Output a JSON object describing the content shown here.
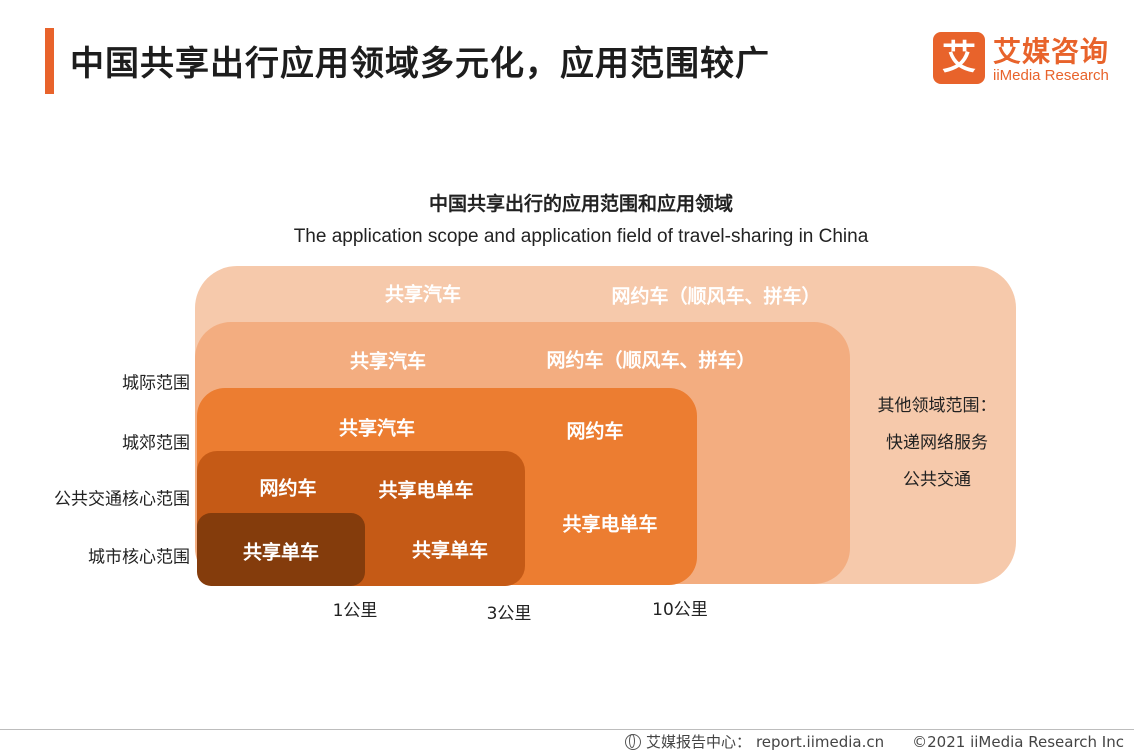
{
  "header": {
    "title": "中国共享出行应用领域多元化，应用范围较广",
    "logo_mark": "艾",
    "logo_cn": "艾媒咨询",
    "logo_en": "iiMedia Research"
  },
  "diagram": {
    "title_cn": "中国共享出行的应用范围和应用领域",
    "title_en": "The application scope and application field of travel-sharing in China",
    "y_labels": [
      "城际范围",
      "城郊范围",
      "公共交通核心范围",
      "城市核心范围"
    ],
    "x_labels": [
      "1公里",
      "3公里",
      "10公里"
    ],
    "regions": {
      "intercity": [
        "共享汽车",
        "网约车（顺风车、拼车）"
      ],
      "suburb": [
        "共享汽车",
        "网约车（顺风车、拼车）"
      ],
      "transit": [
        "共享汽车",
        "网约车",
        "共享电单车"
      ],
      "core_transit": [
        "网约车",
        "共享电单车",
        "共享单车"
      ],
      "city_core": [
        "共享单车"
      ]
    },
    "other": {
      "title": "其他领域范围：",
      "items": [
        "快递网络服务",
        "公共交通"
      ]
    },
    "colors": {
      "intercity": "#f6c9ab",
      "suburb": "#f3ad80",
      "transit": "#ec7d31",
      "core_transit": "#c55a16",
      "city_core": "#843c0c",
      "accent": "#e8632b"
    }
  },
  "footer": {
    "source_label": "艾媒报告中心：",
    "source_url": "report.iimedia.cn",
    "copyright": "©2021  iiMedia Research  Inc"
  }
}
